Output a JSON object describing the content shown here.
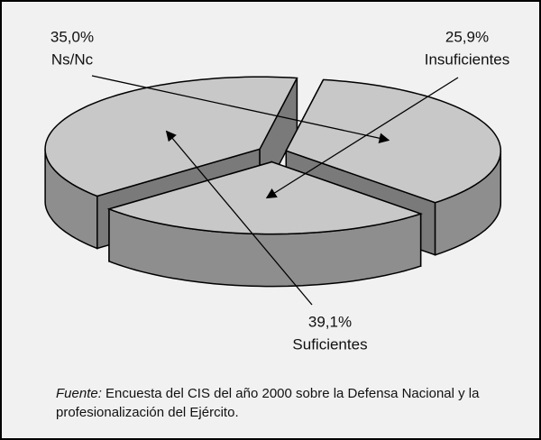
{
  "chart_data": {
    "type": "pie",
    "categories": [
      "Ns/Nc",
      "Insuficientes",
      "Suficientes"
    ],
    "values": [
      35.0,
      25.9,
      39.1
    ],
    "value_labels": [
      "35,0%",
      "25,9%",
      "39,1%"
    ],
    "color": "#c8c8c8",
    "source_label": "Fuente:",
    "source_text": "Encuesta del CIS del año 2000 sobre la Defensa Nacional y la profesionalización del Ejército."
  }
}
